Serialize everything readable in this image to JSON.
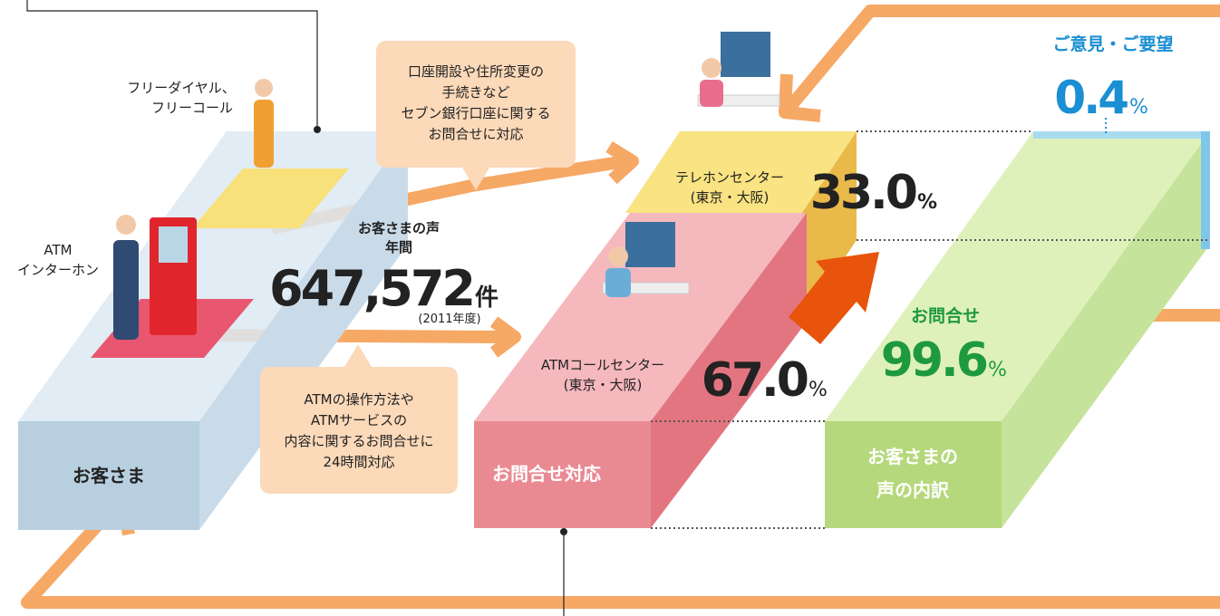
{
  "callers": [
    {
      "lines": [
        "フリーダイヤル、",
        "フリーコール"
      ]
    },
    {
      "lines": [
        "ATM",
        "インターホン"
      ]
    }
  ],
  "customer_label": "お客さま",
  "bubbles": [
    {
      "lines": [
        "口座開設や住所変更の",
        "手続きなど",
        "セブン銀行口座に関する",
        "お問合せに対応"
      ]
    },
    {
      "lines": [
        "ATMの操作方法や",
        "ATMサービスの",
        "内容に関するお問合せに",
        "24時間対応"
      ]
    }
  ],
  "total": {
    "caption": [
      "お客さまの声",
      "年間"
    ],
    "value": "647,572",
    "unit": "件",
    "period": "(2011年度)"
  },
  "centers": [
    {
      "name": [
        "テレホンセンター",
        "(東京・大阪)"
      ],
      "share": "33.0",
      "unit": "%"
    },
    {
      "name": [
        "ATMコールセンター",
        "(東京・大阪)"
      ],
      "share": "67.0",
      "unit": "%"
    }
  ],
  "response_label": "お問合せ対応",
  "breakdown": {
    "label": [
      "お客さまの",
      "声の内訳"
    ],
    "items": [
      {
        "name": "ご意見・ご要望",
        "share": "0.4",
        "unit": "%"
      },
      {
        "name": "お問合せ",
        "share": "99.6",
        "unit": "%"
      }
    ]
  }
}
